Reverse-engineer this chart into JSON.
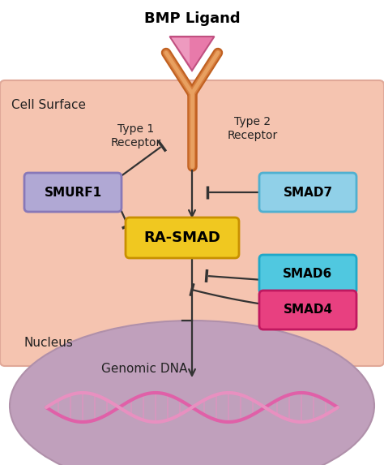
{
  "title": "BMP Ligand",
  "cell_surface_label": "Cell Surface",
  "nucleus_label": "Nucleus",
  "genomic_dna_label": "Genomic DNA",
  "type1_label": "Type 1\nReceptor",
  "type2_label": "Type 2\nReceptor",
  "bg_white": "#ffffff",
  "bg_cell": "#f5c4b0",
  "bg_nucleus": "#c0a0bc",
  "nucleus_edge": "#b090aa",
  "receptor_dark": "#c06020",
  "receptor_mid": "#d88040",
  "receptor_light": "#e8a060",
  "ligand_fill": "#e87aaa",
  "ligand_edge": "#c05080",
  "ligand_hi": "#f0a8c8",
  "smurf1_fc": "#b0a8d4",
  "smurf1_ec": "#8878b8",
  "smad7_fc": "#90d0e8",
  "smad7_ec": "#50b0d0",
  "rasmad_fc": "#f0c820",
  "rasmad_ec": "#c89000",
  "smad6_fc": "#50c8e0",
  "smad6_ec": "#20a8c8",
  "smad4_fc": "#e84080",
  "smad4_ec": "#c01860",
  "arrow_color": "#333333",
  "text_color": "#222222",
  "dna_color1": "#e060a8",
  "dna_color2": "#e890c0"
}
